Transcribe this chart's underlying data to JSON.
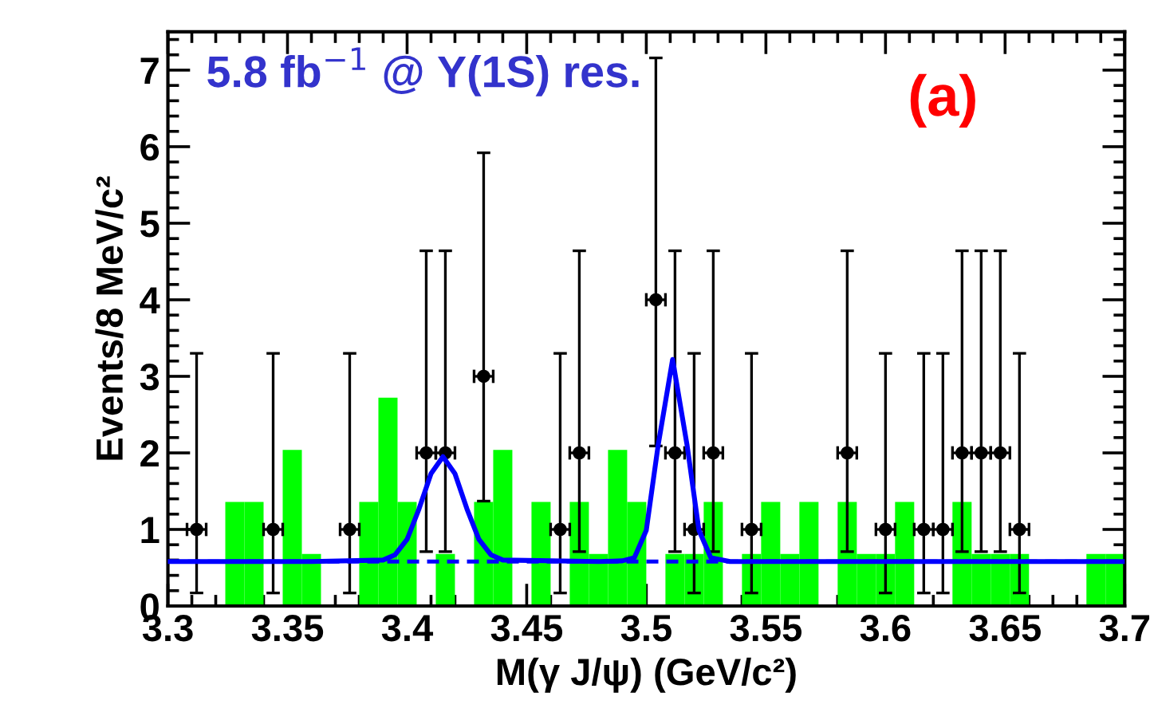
{
  "chart_data": {
    "type": "scatter",
    "xlabel": "M(γ J/ψ) (GeV/c²)",
    "ylabel": "Events/8 MeV/c²",
    "annotations": [
      "5.8 fb$^{−1}$ @ Y(1S) res.",
      "(a)"
    ],
    "xlim": [
      3.3,
      3.7
    ],
    "xticks": [
      3.3,
      3.35,
      3.4,
      3.45,
      3.5,
      3.55,
      3.6,
      3.65,
      3.7
    ],
    "ylim": [
      0,
      7.5
    ],
    "yticks": [
      0,
      1,
      2,
      3,
      4,
      5,
      6,
      7
    ],
    "series": [
      {
        "type": "histogram",
        "color": "#00ff00",
        "bins": [
          3.3,
          3.308,
          3.316,
          3.324,
          3.332,
          3.34,
          3.348,
          3.356,
          3.364,
          3.372,
          3.38,
          3.388,
          3.396,
          3.404,
          3.412,
          3.42,
          3.428,
          3.436,
          3.444,
          3.452,
          3.46,
          3.468,
          3.476,
          3.484,
          3.492,
          3.5,
          3.508,
          3.516,
          3.524,
          3.532,
          3.54,
          3.548,
          3.556,
          3.564,
          3.572,
          3.58,
          3.588,
          3.596,
          3.604,
          3.612,
          3.62,
          3.628,
          3.636,
          3.644,
          3.652,
          3.66,
          3.668,
          3.676,
          3.684,
          3.692,
          3.7
        ],
        "values": [
          0,
          0,
          0,
          1.36,
          1.36,
          0,
          2.04,
          0.68,
          0,
          0,
          1.36,
          2.72,
          1.36,
          0,
          0.68,
          0,
          1.36,
          2.04,
          0,
          1.36,
          0,
          1.36,
          0.68,
          2.04,
          1.36,
          0,
          0.68,
          0.68,
          1.36,
          0,
          0.68,
          1.36,
          0.68,
          1.36,
          0,
          1.36,
          0.68,
          0.68,
          1.36,
          0,
          0,
          1.36,
          0.68,
          0.68,
          0.68,
          0,
          0,
          0,
          0.68,
          0.68
        ]
      },
      {
        "color": "#000000",
        "marker": "circle",
        "x": [
          3.312,
          3.344,
          3.376,
          3.408,
          3.416,
          3.432,
          3.464,
          3.472,
          3.504,
          3.512,
          3.52,
          3.528,
          3.544,
          3.584,
          3.6,
          3.616,
          3.624,
          3.632,
          3.64,
          3.648,
          3.656
        ],
        "values": [
          1,
          1,
          1,
          2,
          2,
          3,
          1,
          2,
          4,
          2,
          1,
          2,
          1,
          2,
          1,
          1,
          1,
          2,
          2,
          2,
          1
        ],
        "errors": [
          [
            0.17,
            3.3
          ],
          [
            0.17,
            3.3
          ],
          [
            0.17,
            3.3
          ],
          [
            0.71,
            4.64
          ],
          [
            0.71,
            4.64
          ],
          [
            1.37,
            5.92
          ],
          [
            0.17,
            3.3
          ],
          [
            0.71,
            4.64
          ],
          [
            2.09,
            7.16
          ],
          [
            0.71,
            4.64
          ],
          [
            0.17,
            3.3
          ],
          [
            0.71,
            4.64
          ],
          [
            0.17,
            3.3
          ],
          [
            0.71,
            4.64
          ],
          [
            0.17,
            3.3
          ],
          [
            0.17,
            3.3
          ],
          [
            0.17,
            3.3
          ],
          [
            0.71,
            4.64
          ],
          [
            0.71,
            4.64
          ],
          [
            0.71,
            4.64
          ],
          [
            0.17,
            3.3
          ]
        ],
        "xerrors": [
          0.004,
          0.004,
          0.004,
          0.004,
          0.004,
          0.004,
          0.004,
          0.004,
          0.004,
          0.004,
          0.004,
          0.004,
          0.004,
          0.004,
          0.004,
          0.004,
          0.004,
          0.004,
          0.004,
          0.004,
          0.004
        ]
      },
      {
        "type": "line",
        "color": "#0000ff",
        "line_style": "solid",
        "x": [
          3.3,
          3.36,
          3.39,
          3.395,
          3.4,
          3.405,
          3.41,
          3.415,
          3.42,
          3.425,
          3.43,
          3.435,
          3.44,
          3.48,
          3.49,
          3.495,
          3.5,
          3.505,
          3.511,
          3.517,
          3.522,
          3.527,
          3.535,
          3.7
        ],
        "values": [
          0.58,
          0.58,
          0.6,
          0.67,
          0.87,
          1.27,
          1.73,
          1.95,
          1.73,
          1.27,
          0.87,
          0.67,
          0.6,
          0.58,
          0.59,
          0.63,
          0.99,
          2.11,
          3.22,
          2.11,
          0.99,
          0.63,
          0.58,
          0.58
        ]
      },
      {
        "type": "line",
        "color": "#0000ff",
        "line_style": "dashed",
        "x": [
          3.3,
          3.7
        ],
        "values": [
          0.58,
          0.58
        ]
      }
    ]
  }
}
